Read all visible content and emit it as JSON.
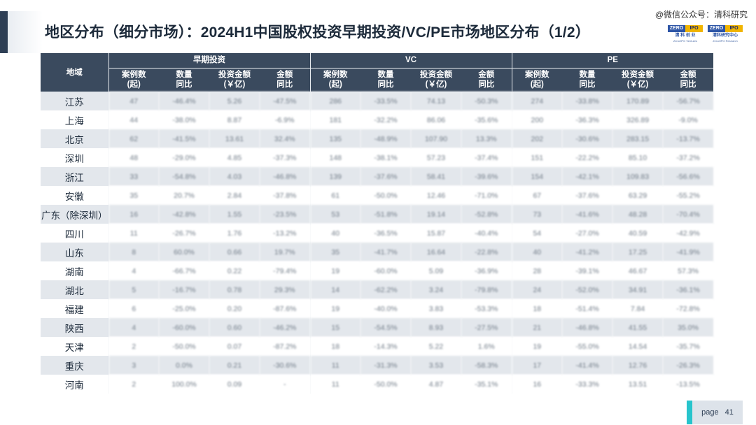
{
  "title": "地区分布（细分市场）：2024H1中国股权投资早期投资/VC/PE市场地区分布（1/2）",
  "watermark": "@微信公众号：清科研究",
  "logos": [
    {
      "brand_left": "ZERO",
      "brand_right": "IPO",
      "cn": "清 科 创 业",
      "en": "Zero2IPO Ventures"
    },
    {
      "brand_left": "ZERO",
      "brand_right": "IPO",
      "cn": "清科研究中心",
      "en": "Zero2IPO Research"
    }
  ],
  "table": {
    "region_header": "地域",
    "groups": [
      "早期投资",
      "VC",
      "PE"
    ],
    "subheaders": [
      [
        "案例数",
        "(起)"
      ],
      [
        "数量",
        "同比"
      ],
      [
        "投资金额",
        "(￥亿)"
      ],
      [
        "金额",
        "同比"
      ]
    ],
    "rows": [
      {
        "region": "江苏",
        "values": [
          "47",
          "-46.4%",
          "5.26",
          "-47.5%",
          "286",
          "-33.5%",
          "74.13",
          "-50.3%",
          "274",
          "-33.8%",
          "170.89",
          "-56.7%"
        ]
      },
      {
        "region": "上海",
        "values": [
          "44",
          "-38.0%",
          "8.87",
          "-6.9%",
          "181",
          "-32.2%",
          "86.06",
          "-35.6%",
          "200",
          "-36.3%",
          "326.89",
          "-9.0%"
        ]
      },
      {
        "region": "北京",
        "values": [
          "62",
          "-41.5%",
          "13.61",
          "32.4%",
          "135",
          "-48.9%",
          "107.90",
          "13.3%",
          "202",
          "-30.6%",
          "283.15",
          "-13.7%"
        ]
      },
      {
        "region": "深圳",
        "values": [
          "48",
          "-29.0%",
          "4.85",
          "-37.3%",
          "148",
          "-38.1%",
          "57.23",
          "-37.4%",
          "151",
          "-22.2%",
          "85.10",
          "-37.2%"
        ]
      },
      {
        "region": "浙江",
        "values": [
          "33",
          "-54.8%",
          "4.03",
          "-46.8%",
          "139",
          "-37.6%",
          "58.41",
          "-39.6%",
          "154",
          "-42.1%",
          "109.83",
          "-56.6%"
        ]
      },
      {
        "region": "安徽",
        "values": [
          "35",
          "20.7%",
          "2.84",
          "-37.8%",
          "61",
          "-50.0%",
          "12.46",
          "-71.0%",
          "67",
          "-37.6%",
          "63.29",
          "-55.2%"
        ]
      },
      {
        "region": "广东（除深圳）",
        "values": [
          "16",
          "-42.8%",
          "1.55",
          "-23.5%",
          "53",
          "-51.8%",
          "19.14",
          "-52.8%",
          "73",
          "-41.6%",
          "48.28",
          "-70.4%"
        ]
      },
      {
        "region": "四川",
        "values": [
          "11",
          "-26.7%",
          "1.76",
          "-13.2%",
          "40",
          "-36.5%",
          "15.87",
          "-40.4%",
          "54",
          "-27.0%",
          "40.59",
          "-42.9%"
        ]
      },
      {
        "region": "山东",
        "values": [
          "8",
          "60.0%",
          "0.66",
          "19.7%",
          "35",
          "-41.7%",
          "16.64",
          "-22.8%",
          "40",
          "-41.2%",
          "17.25",
          "-41.9%"
        ]
      },
      {
        "region": "湖南",
        "values": [
          "4",
          "-66.7%",
          "0.22",
          "-79.4%",
          "19",
          "-60.0%",
          "5.09",
          "-36.9%",
          "28",
          "-39.1%",
          "46.67",
          "57.3%"
        ]
      },
      {
        "region": "湖北",
        "values": [
          "5",
          "-16.7%",
          "0.78",
          "29.3%",
          "14",
          "-62.2%",
          "3.24",
          "-79.8%",
          "24",
          "-52.0%",
          "34.91",
          "-36.1%"
        ]
      },
      {
        "region": "福建",
        "values": [
          "6",
          "-25.0%",
          "0.20",
          "-87.6%",
          "19",
          "-40.0%",
          "3.83",
          "-53.3%",
          "18",
          "-51.4%",
          "7.84",
          "-72.8%"
        ]
      },
      {
        "region": "陕西",
        "values": [
          "4",
          "-60.0%",
          "0.60",
          "-46.2%",
          "15",
          "-54.5%",
          "8.93",
          "-27.5%",
          "21",
          "-46.8%",
          "41.55",
          "35.0%"
        ]
      },
      {
        "region": "天津",
        "values": [
          "2",
          "-50.0%",
          "0.07",
          "-87.2%",
          "18",
          "-14.3%",
          "5.22",
          "1.6%",
          "19",
          "-55.0%",
          "14.54",
          "-35.7%"
        ]
      },
      {
        "region": "重庆",
        "values": [
          "3",
          "0.0%",
          "0.21",
          "-30.6%",
          "11",
          "-31.3%",
          "3.53",
          "-58.3%",
          "17",
          "-41.4%",
          "12.76",
          "-26.3%"
        ]
      },
      {
        "region": "河南",
        "values": [
          "2",
          "100.0%",
          "0.09",
          "-",
          "11",
          "-50.0%",
          "4.87",
          "-35.1%",
          "16",
          "-33.3%",
          "13.51",
          "-13.5%"
        ]
      }
    ]
  },
  "footer": {
    "page_label": "page",
    "page_number": "41"
  },
  "colors": {
    "header_bg": "#3a4a5e",
    "accent_bar": "#2e3f55",
    "page_accent": "#27c4cc",
    "row_alt": "#e3e7ec"
  }
}
